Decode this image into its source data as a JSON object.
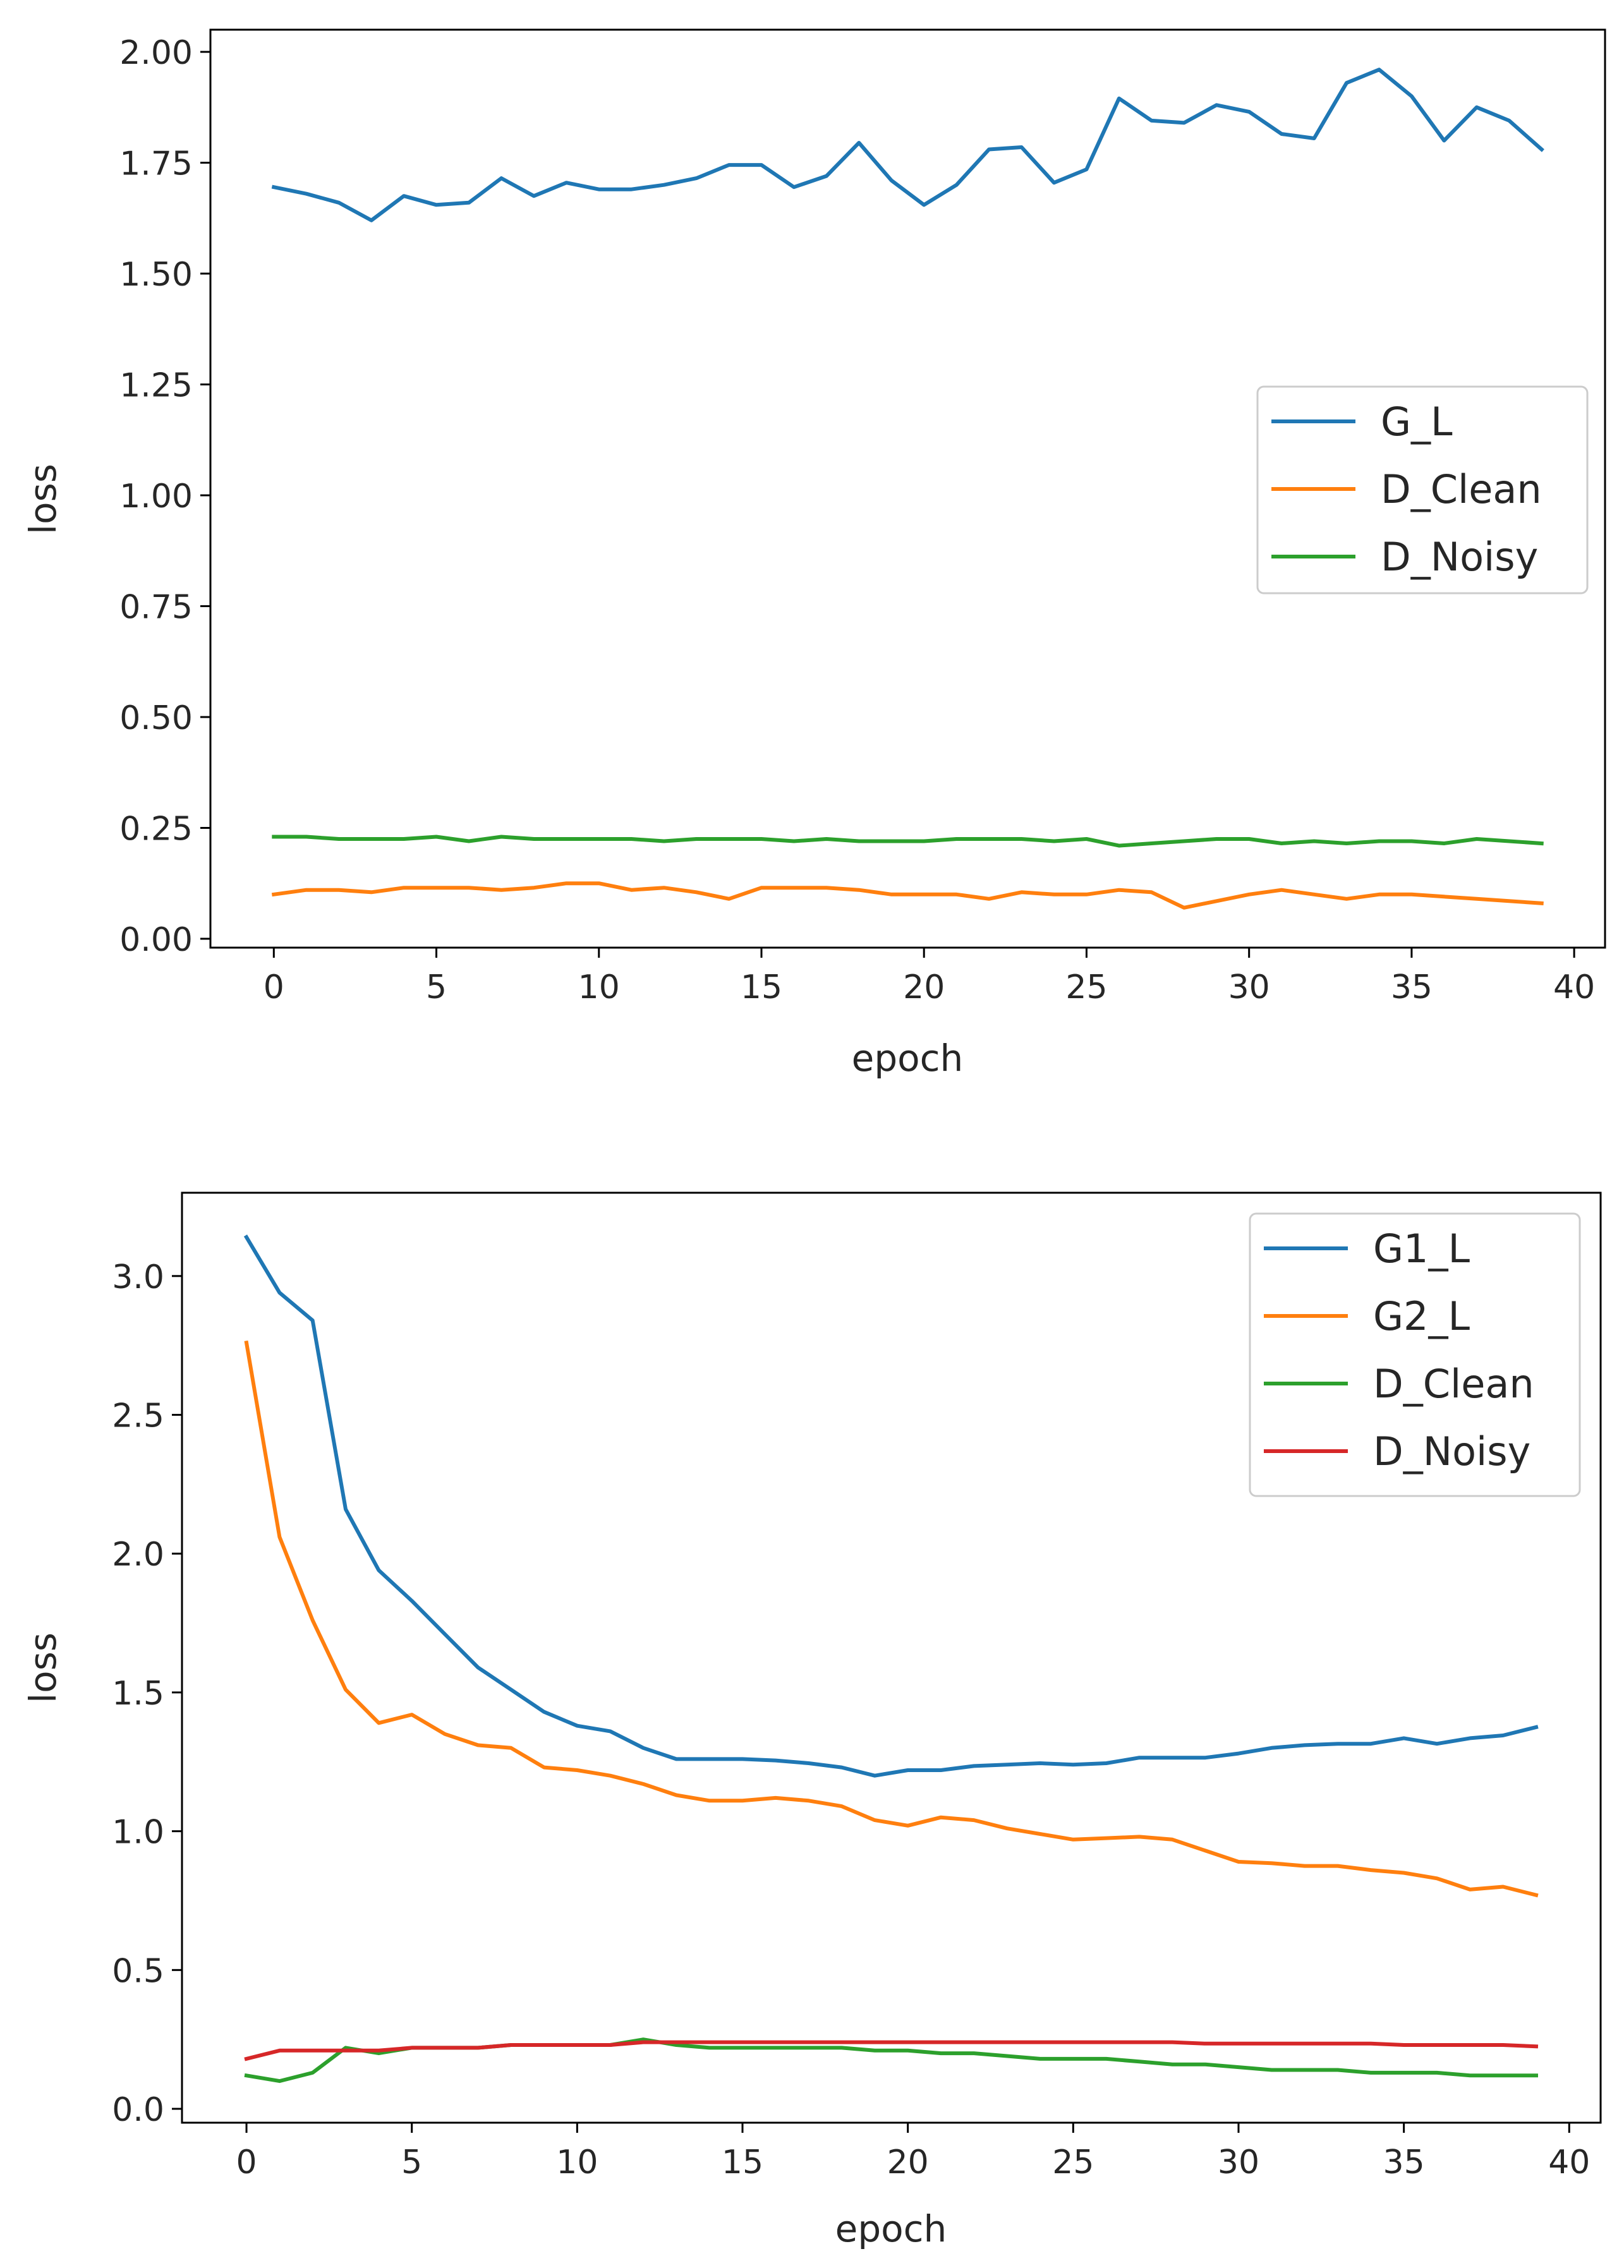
{
  "chart_data": [
    {
      "type": "line",
      "xlabel": "epoch",
      "ylabel": "loss",
      "xlim": [
        -1.95,
        40.95
      ],
      "ylim": [
        -0.02,
        2.05
      ],
      "xticks": [
        0,
        5,
        10,
        15,
        20,
        25,
        30,
        35,
        40
      ],
      "yticks": [
        0.0,
        0.25,
        0.5,
        0.75,
        1.0,
        1.25,
        1.5,
        1.75,
        2.0
      ],
      "xtick_labels": [
        "0",
        "5",
        "10",
        "15",
        "20",
        "25",
        "30",
        "35",
        "40"
      ],
      "ytick_labels": [
        "0.00",
        "0.25",
        "0.50",
        "0.75",
        "1.00",
        "1.25",
        "1.50",
        "1.75",
        "2.00"
      ],
      "legend_position": "center-right",
      "grid": false,
      "x": [
        0,
        1,
        2,
        3,
        4,
        5,
        6,
        7,
        8,
        9,
        10,
        11,
        12,
        13,
        14,
        15,
        16,
        17,
        18,
        19,
        20,
        21,
        22,
        23,
        24,
        25,
        26,
        27,
        28,
        29,
        30,
        31,
        32,
        33,
        34,
        35,
        36,
        37,
        38,
        39
      ],
      "series": [
        {
          "name": "G_L",
          "color": "#1f77b4",
          "values": [
            1.695,
            1.68,
            1.66,
            1.62,
            1.675,
            1.655,
            1.66,
            1.715,
            1.675,
            1.705,
            1.69,
            1.69,
            1.7,
            1.715,
            1.745,
            1.745,
            1.695,
            1.72,
            1.795,
            1.71,
            1.655,
            1.7,
            1.78,
            1.785,
            1.705,
            1.735,
            1.895,
            1.845,
            1.84,
            1.88,
            1.865,
            1.815,
            1.805,
            1.93,
            1.96,
            1.9,
            1.8,
            1.875,
            1.845,
            1.78
          ]
        },
        {
          "name": "D_Clean",
          "color": "#ff7f0e",
          "values": [
            0.1,
            0.11,
            0.11,
            0.105,
            0.115,
            0.115,
            0.115,
            0.11,
            0.115,
            0.125,
            0.125,
            0.11,
            0.115,
            0.105,
            0.09,
            0.115,
            0.115,
            0.115,
            0.11,
            0.1,
            0.1,
            0.1,
            0.09,
            0.105,
            0.1,
            0.1,
            0.11,
            0.105,
            0.07,
            0.085,
            0.1,
            0.11,
            0.1,
            0.09,
            0.1,
            0.1,
            0.095,
            0.09,
            0.085,
            0.08
          ]
        },
        {
          "name": "D_Noisy",
          "color": "#2ca02c",
          "values": [
            0.23,
            0.23,
            0.225,
            0.225,
            0.225,
            0.23,
            0.22,
            0.23,
            0.225,
            0.225,
            0.225,
            0.225,
            0.22,
            0.225,
            0.225,
            0.225,
            0.22,
            0.225,
            0.22,
            0.22,
            0.22,
            0.225,
            0.225,
            0.225,
            0.22,
            0.225,
            0.21,
            0.215,
            0.22,
            0.225,
            0.225,
            0.215,
            0.22,
            0.215,
            0.22,
            0.22,
            0.215,
            0.225,
            0.22,
            0.215
          ]
        }
      ]
    },
    {
      "type": "line",
      "xlabel": "epoch",
      "ylabel": "loss",
      "xlim": [
        -1.95,
        40.95
      ],
      "ylim": [
        -0.05,
        3.3
      ],
      "xticks": [
        0,
        5,
        10,
        15,
        20,
        25,
        30,
        35,
        40
      ],
      "yticks": [
        0.0,
        0.5,
        1.0,
        1.5,
        2.0,
        2.5,
        3.0
      ],
      "xtick_labels": [
        "0",
        "5",
        "10",
        "15",
        "20",
        "25",
        "30",
        "35",
        "40"
      ],
      "ytick_labels": [
        "0.0",
        "0.5",
        "1.0",
        "1.5",
        "2.0",
        "2.5",
        "3.0"
      ],
      "legend_position": "top-right",
      "grid": false,
      "x": [
        0,
        1,
        2,
        3,
        4,
        5,
        6,
        7,
        8,
        9,
        10,
        11,
        12,
        13,
        14,
        15,
        16,
        17,
        18,
        19,
        20,
        21,
        22,
        23,
        24,
        25,
        26,
        27,
        28,
        29,
        30,
        31,
        32,
        33,
        34,
        35,
        36,
        37,
        38,
        39
      ],
      "series": [
        {
          "name": "G1_L",
          "color": "#1f77b4",
          "values": [
            3.14,
            2.94,
            2.84,
            2.16,
            1.94,
            1.83,
            1.71,
            1.59,
            1.51,
            1.43,
            1.38,
            1.36,
            1.3,
            1.26,
            1.26,
            1.26,
            1.255,
            1.245,
            1.23,
            1.2,
            1.22,
            1.22,
            1.235,
            1.24,
            1.245,
            1.24,
            1.245,
            1.265,
            1.265,
            1.265,
            1.28,
            1.3,
            1.31,
            1.315,
            1.315,
            1.335,
            1.315,
            1.335,
            1.345,
            1.375
          ]
        },
        {
          "name": "G2_L",
          "color": "#ff7f0e",
          "values": [
            2.76,
            2.06,
            1.76,
            1.51,
            1.39,
            1.42,
            1.35,
            1.31,
            1.3,
            1.23,
            1.22,
            1.2,
            1.17,
            1.13,
            1.11,
            1.11,
            1.12,
            1.11,
            1.09,
            1.04,
            1.02,
            1.05,
            1.04,
            1.01,
            0.99,
            0.97,
            0.975,
            0.98,
            0.97,
            0.93,
            0.89,
            0.885,
            0.875,
            0.875,
            0.86,
            0.85,
            0.83,
            0.79,
            0.8,
            0.77
          ]
        },
        {
          "name": "D_Clean",
          "color": "#2ca02c",
          "values": [
            0.12,
            0.1,
            0.13,
            0.22,
            0.2,
            0.22,
            0.22,
            0.22,
            0.23,
            0.23,
            0.23,
            0.23,
            0.25,
            0.23,
            0.22,
            0.22,
            0.22,
            0.22,
            0.22,
            0.21,
            0.21,
            0.2,
            0.2,
            0.19,
            0.18,
            0.18,
            0.18,
            0.17,
            0.16,
            0.16,
            0.15,
            0.14,
            0.14,
            0.14,
            0.13,
            0.13,
            0.13,
            0.12,
            0.12,
            0.12
          ]
        },
        {
          "name": "D_Noisy",
          "color": "#d62728",
          "values": [
            0.18,
            0.21,
            0.21,
            0.21,
            0.21,
            0.22,
            0.22,
            0.22,
            0.23,
            0.23,
            0.23,
            0.23,
            0.24,
            0.24,
            0.24,
            0.24,
            0.24,
            0.24,
            0.24,
            0.24,
            0.24,
            0.24,
            0.24,
            0.24,
            0.24,
            0.24,
            0.24,
            0.24,
            0.24,
            0.235,
            0.235,
            0.235,
            0.235,
            0.235,
            0.235,
            0.23,
            0.23,
            0.23,
            0.23,
            0.225
          ]
        }
      ]
    }
  ]
}
